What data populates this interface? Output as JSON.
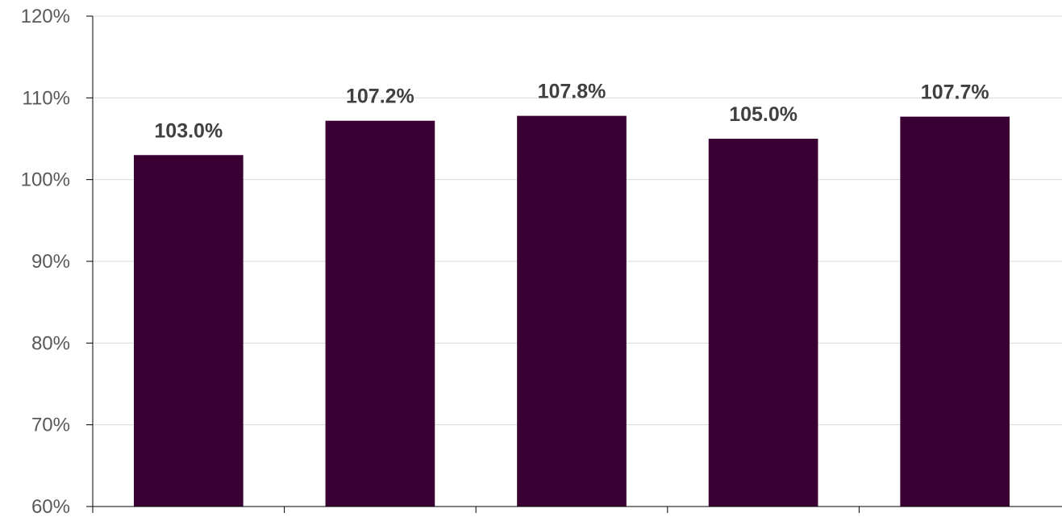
{
  "chart_data": {
    "type": "bar",
    "categories": [
      "",
      "",
      "",
      "",
      ""
    ],
    "values": [
      103.0,
      107.2,
      107.8,
      105.0,
      107.7
    ],
    "data_labels": [
      "103.0%",
      "107.2%",
      "107.8%",
      "105.0%",
      "107.7%"
    ],
    "y_ticks": [
      60,
      70,
      80,
      90,
      100,
      110,
      120
    ],
    "y_tick_labels": [
      "60%",
      "70%",
      "80%",
      "90%",
      "100%",
      "110%",
      "120%"
    ],
    "ylim": [
      60,
      120
    ],
    "grid": true,
    "legend": "none",
    "bar_color": "#3b0033",
    "grid_color": "#d9d9d9",
    "axis_color": "#000000"
  }
}
